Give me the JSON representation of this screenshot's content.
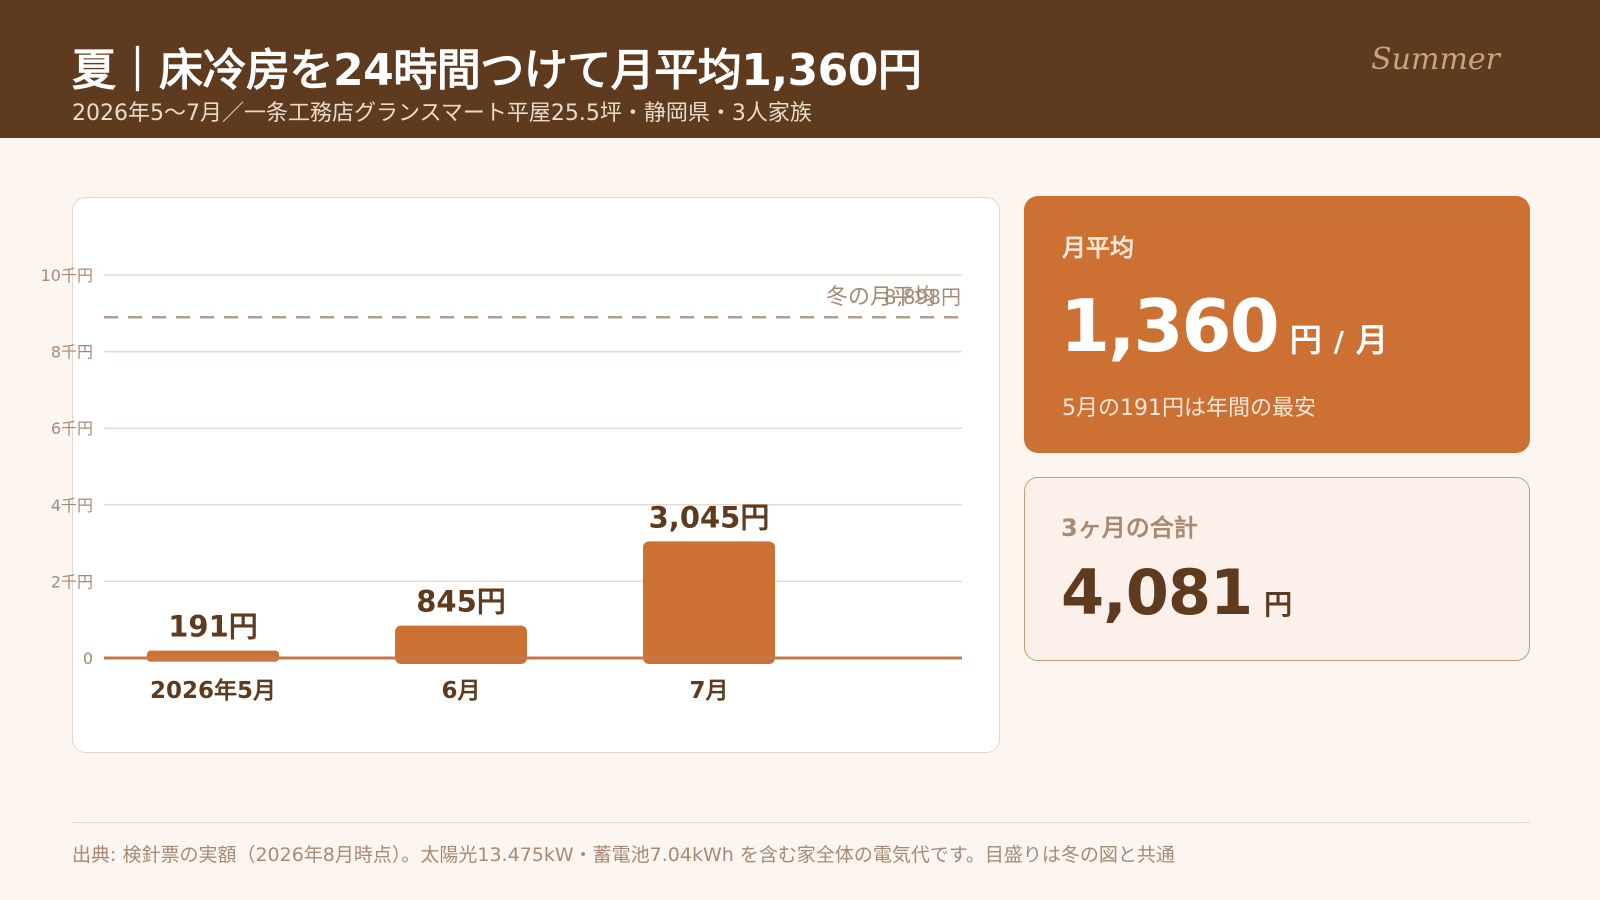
{
  "header": {
    "title": "夏｜床冷房を24時間つけて月平均1,360円",
    "subtitle": "2026年5〜7月／一条工務店グランスマート平屋25.5坪・静岡県・3人家族",
    "season": "Summer"
  },
  "colors": {
    "header_bg": "#5e3a1e",
    "accent": "#cd7034",
    "dark_text": "#5e3a1e",
    "muted_text": "#a88a74",
    "reference_line": "#b39d8d"
  },
  "chart_data": {
    "type": "bar",
    "categories": [
      "2026年5月",
      "6月",
      "7月"
    ],
    "values": [
      191,
      845,
      3045
    ],
    "data_labels": [
      "191円",
      "845円",
      "3,045円"
    ],
    "ylim": [
      0,
      10000
    ],
    "yticks": [
      0,
      2000,
      4000,
      6000,
      8000,
      10000
    ],
    "ytick_labels": [
      "0",
      "2千円",
      "4千円",
      "6千円",
      "8千円",
      "10千円"
    ],
    "grid": true,
    "reference_line": {
      "value": 8898,
      "label": "冬の月平均",
      "value_label": "8,898円",
      "style": "dashed"
    }
  },
  "avg_card": {
    "label": "月平均",
    "value": "1,360",
    "unit": "円",
    "slash": "/",
    "per": "月",
    "note": "5月の191円は年間の最安"
  },
  "total_card": {
    "label": "3ヶ月の合計",
    "value": "4,081",
    "unit": "円"
  },
  "footer": {
    "source": "出典: 検針票の実額（2026年8月時点）。太陽光13.475kW・蓄電池7.04kWh を含む家全体の電気代です。目盛りは冬の図と共通"
  }
}
